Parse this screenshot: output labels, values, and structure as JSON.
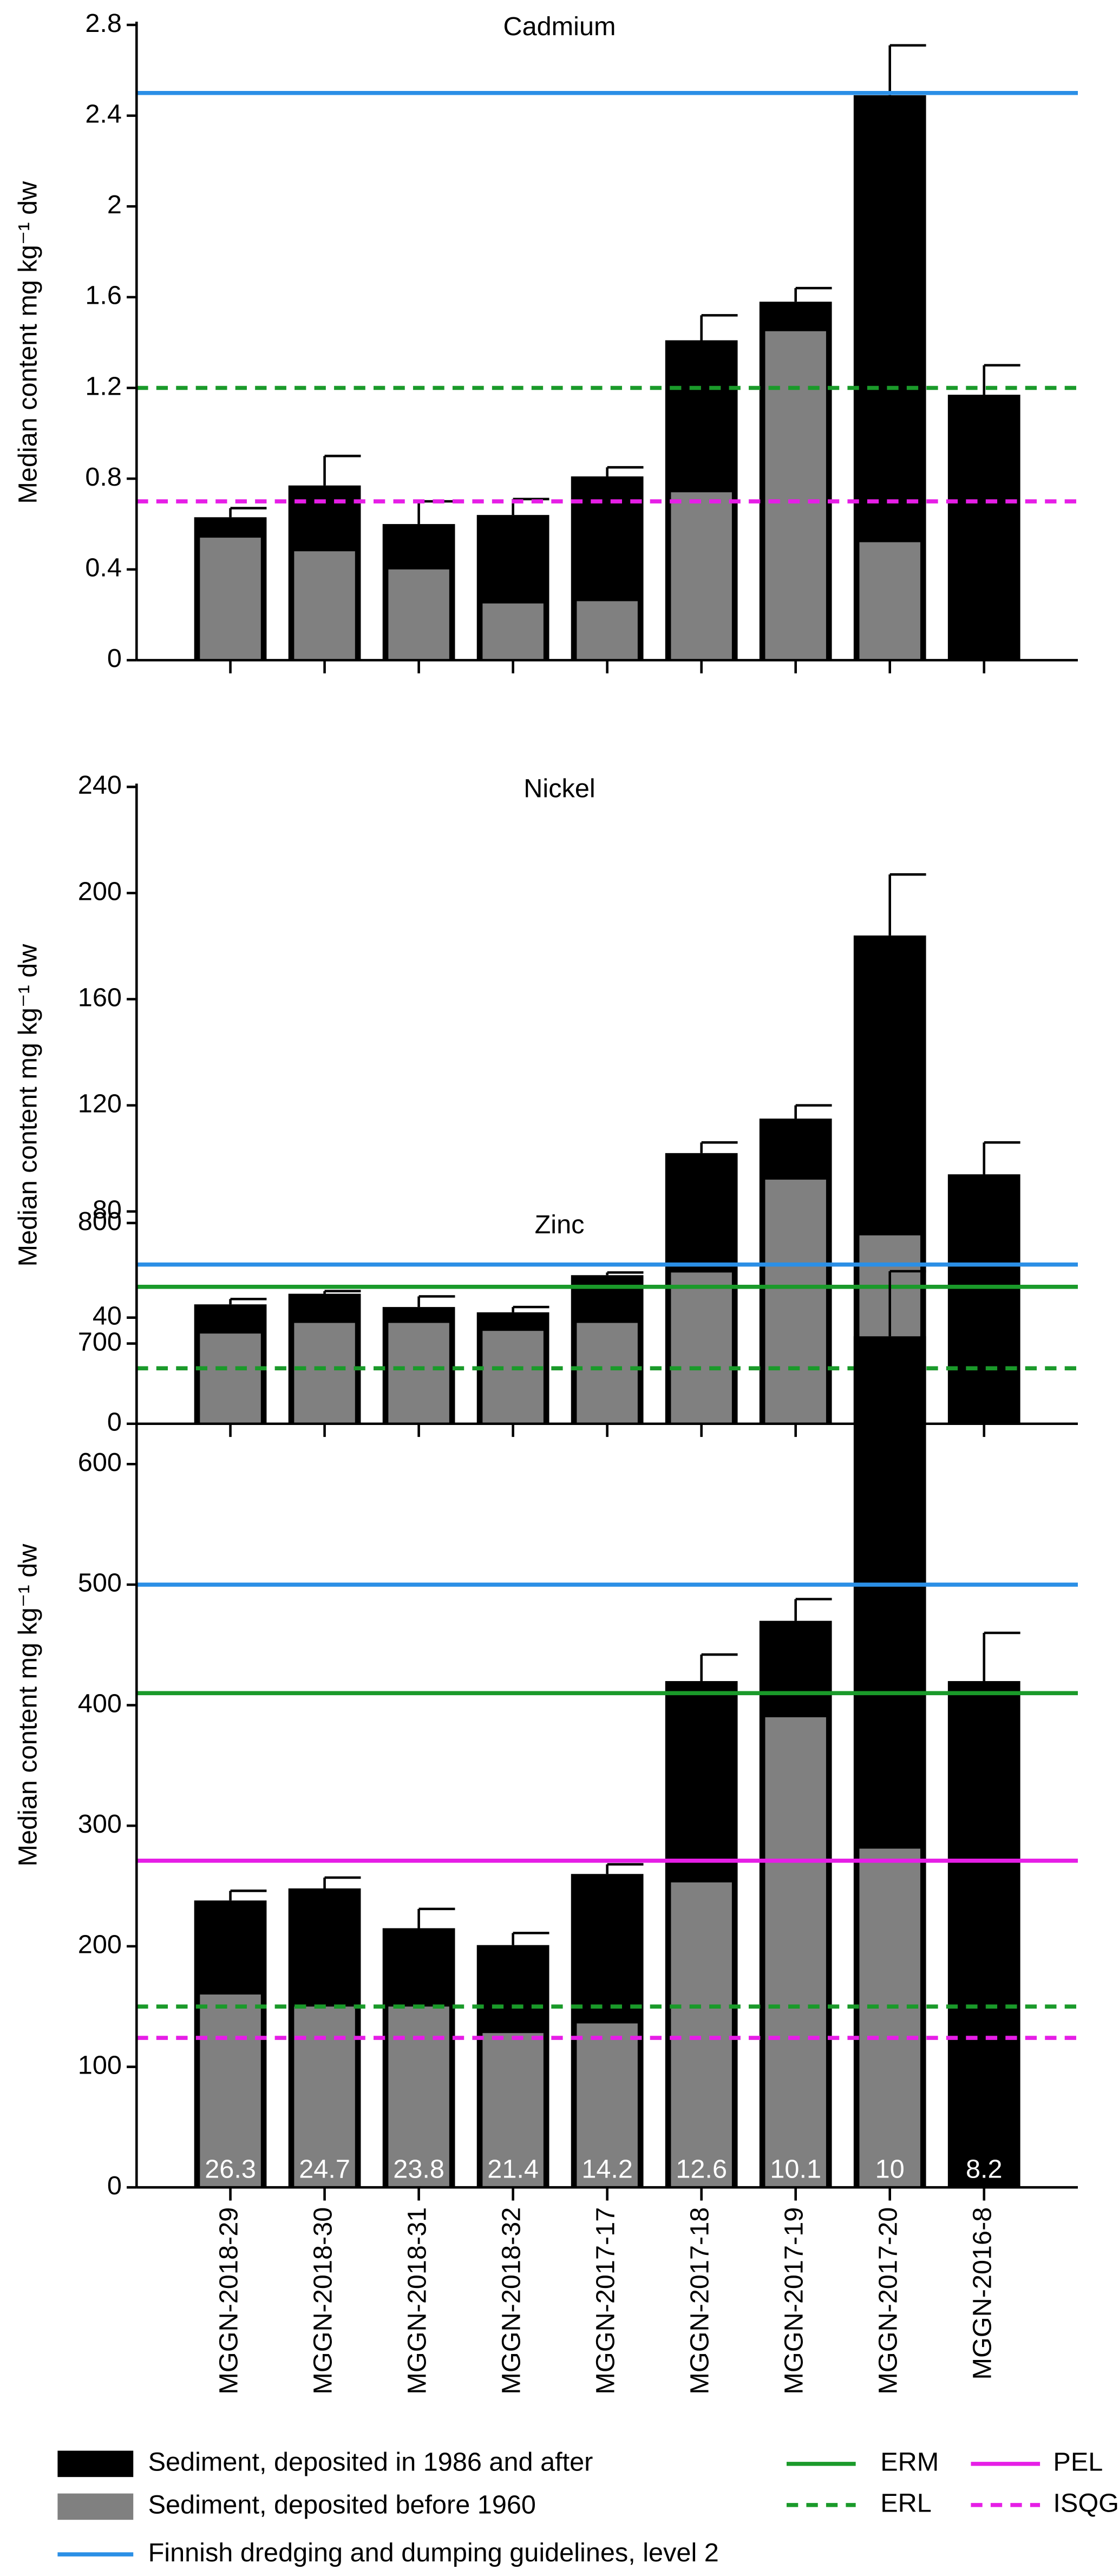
{
  "chart_data": [
    {
      "type": "bar",
      "title": "Cadmium",
      "y_label": "Median content mg kg⁻¹ dw",
      "categories": [
        null,
        null,
        null,
        null,
        null,
        null,
        null,
        null,
        null
      ],
      "series": [
        {
          "color": "#000000",
          "values": [
            0.63,
            0.77,
            0.6,
            0.64,
            0.81,
            1.41,
            1.58,
            2.49,
            1.17
          ],
          "errors": [
            0.04,
            0.13,
            0.1,
            0.07,
            0.04,
            0.11,
            0.06,
            0.22,
            0.13
          ]
        },
        {
          "color": "#808080",
          "values": [
            0.54,
            0.48,
            0.4,
            0.25,
            0.26,
            0.74,
            1.45,
            0.52,
            null
          ]
        }
      ],
      "lines": [
        {
          "value": 2.5,
          "color": "#2b8fe6",
          "dashed": false
        },
        {
          "value": 1.2,
          "color": "#1a9a2a",
          "dashed": true
        },
        {
          "value": 0.7,
          "color": "#e61ee6",
          "dashed": true
        }
      ],
      "ylim": [
        0,
        2.8
      ],
      "yticks": [
        0,
        0.4,
        0.8,
        1.2,
        1.6,
        2,
        2.4,
        2.8
      ]
    },
    {
      "type": "bar",
      "title": "Nickel",
      "y_label": "Median content mg kg⁻¹ dw",
      "categories": [
        null,
        null,
        null,
        null,
        null,
        null,
        null,
        null,
        null
      ],
      "series": [
        {
          "color": "#000000",
          "values": [
            45,
            49,
            44,
            42,
            56,
            102,
            115,
            184,
            94
          ],
          "errors": [
            2,
            1,
            4,
            2,
            1,
            4,
            5,
            23,
            12
          ]
        },
        {
          "color": "#808080",
          "values": [
            34,
            38,
            38,
            35,
            38,
            57,
            92,
            71,
            null
          ]
        }
      ],
      "lines": [
        {
          "value": 60,
          "color": "#2b8fe6",
          "dashed": false
        },
        {
          "value": 51.6,
          "color": "#1a9a2a",
          "dashed": false
        },
        {
          "value": 20.9,
          "color": "#1a9a2a",
          "dashed": true
        }
      ],
      "ylim": [
        0,
        240
      ],
      "yticks": [
        0,
        40,
        80,
        120,
        160,
        200,
        240
      ]
    },
    {
      "type": "bar",
      "title": "Zinc",
      "y_label": "Median content mg kg⁻¹ dw",
      "categories": [
        "MGGN-2018-29",
        "MGGN-2018-30",
        "MGGN-2018-31",
        "MGGN-2018-32",
        "MGGN-2017-17",
        "MGGN-2017-18",
        "MGGN-2017-19",
        "MGGN-2017-20",
        "MGGN-2016-8"
      ],
      "series": [
        {
          "name": "Sediment, deposited in 1986 and after",
          "color": "#000000",
          "values": [
            238,
            248,
            215,
            201,
            260,
            420,
            470,
            706,
            420
          ],
          "errors": [
            8,
            9,
            16,
            10,
            8,
            22,
            18,
            54,
            40
          ]
        },
        {
          "name": "Sediment, deposited before 1960",
          "color": "#808080",
          "values": [
            160,
            150,
            150,
            128,
            136,
            253,
            390,
            281,
            null
          ]
        }
      ],
      "lines": [
        {
          "name": "Finnish dredging and dumping guidelines, level 2",
          "value": 500,
          "color": "#2b8fe6",
          "dashed": false
        },
        {
          "name": "ERM",
          "value": 410,
          "color": "#1a9a2a",
          "dashed": false
        },
        {
          "name": "ERL",
          "value": 150,
          "color": "#1a9a2a",
          "dashed": true
        },
        {
          "name": "PEL",
          "value": 271,
          "color": "#e61ee6",
          "dashed": false
        },
        {
          "name": "ISQG",
          "value": 124,
          "color": "#e61ee6",
          "dashed": true
        }
      ],
      "bar_annotations": [
        26.3,
        24.7,
        23.8,
        21.4,
        14.2,
        12.6,
        10.1,
        10,
        8.2
      ],
      "ylim": [
        0,
        800
      ],
      "yticks": [
        0,
        100,
        200,
        300,
        400,
        500,
        600,
        700,
        800
      ]
    }
  ]
}
